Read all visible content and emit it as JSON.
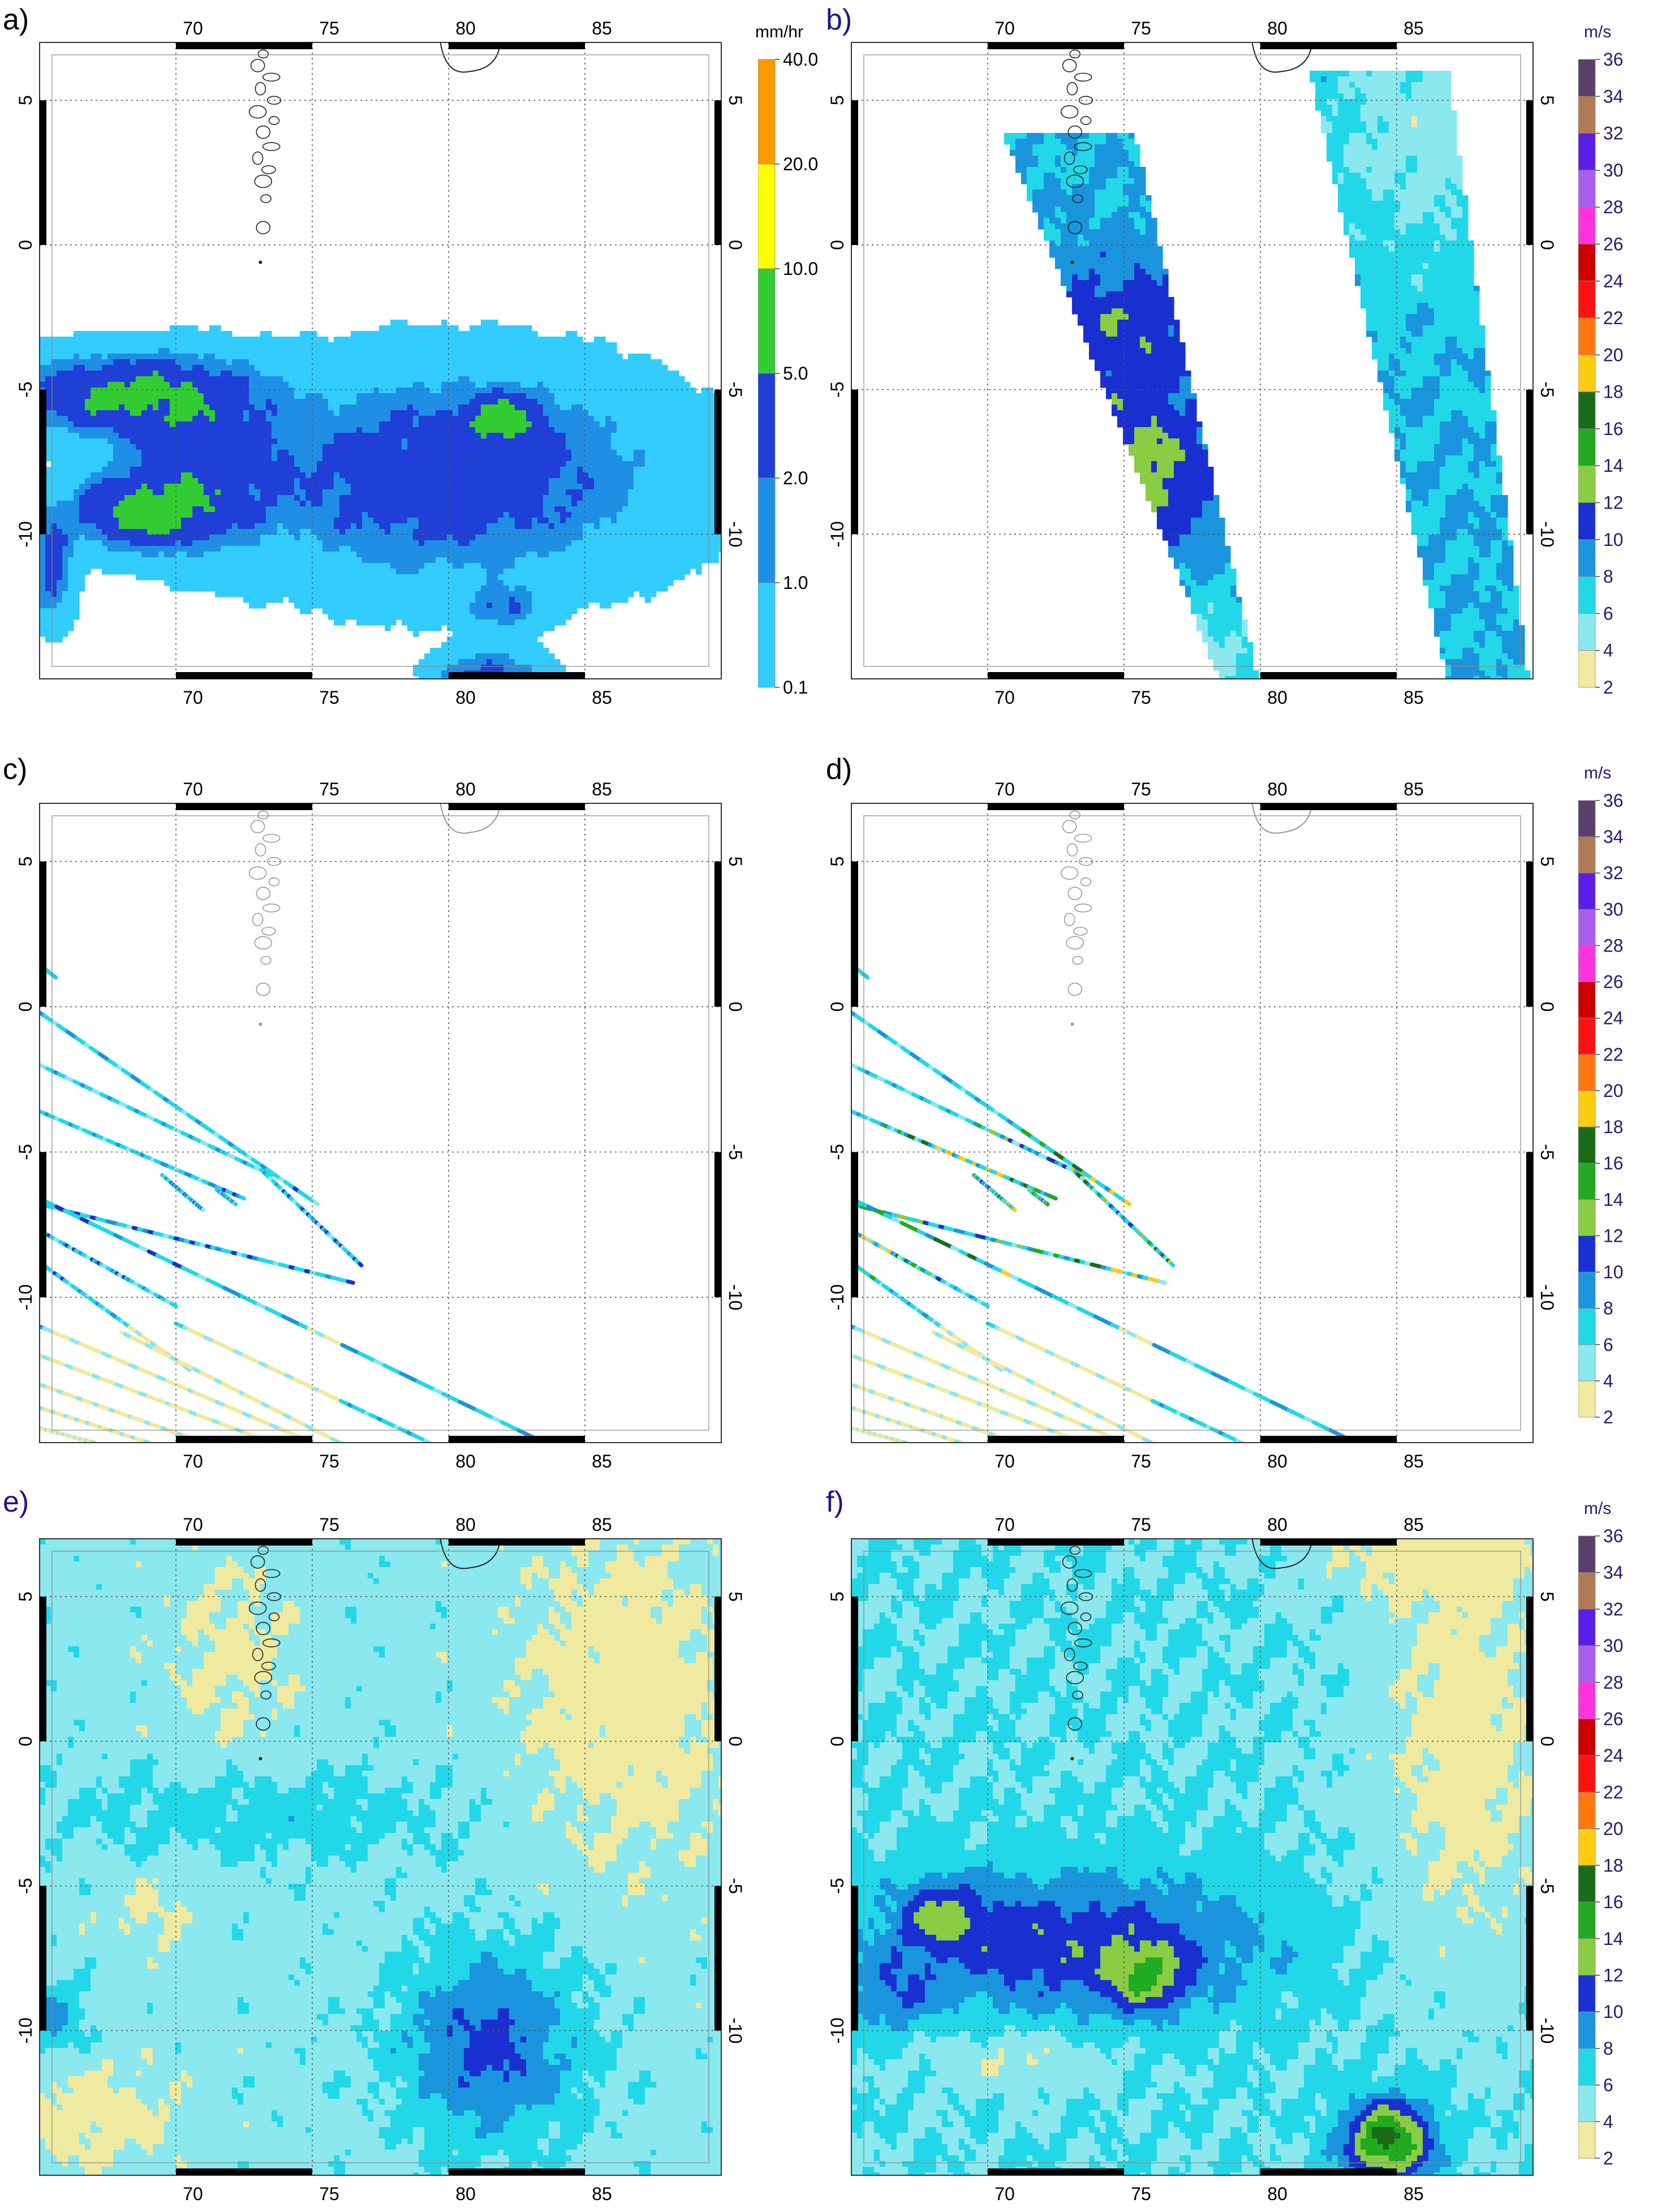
{
  "panels": [
    {
      "id": "a",
      "label": "a)",
      "label_color": "#000000",
      "type": "precip"
    },
    {
      "id": "b",
      "label": "b)",
      "label_color": "#1a1a8a",
      "type": "wind-swath"
    },
    {
      "id": "c",
      "label": "c)",
      "label_color": "#000000",
      "type": "tracks-light"
    },
    {
      "id": "d",
      "label": "d)",
      "label_color": "#000000",
      "type": "tracks-mixed"
    },
    {
      "id": "e",
      "label": "e)",
      "label_color": "#1a1a8a",
      "type": "wind-field-moderate"
    },
    {
      "id": "f",
      "label": "f)",
      "label_color": "#1a1a8a",
      "type": "wind-field-strong"
    }
  ],
  "axes": {
    "lon_ticks": [
      "70",
      "75",
      "80",
      "85"
    ],
    "lon_values": [
      70,
      75,
      80,
      85
    ],
    "lat_ticks": [
      "5",
      "0",
      "-5",
      "-10"
    ],
    "lat_values": [
      5,
      0,
      -5,
      -10
    ],
    "lon_range": [
      65,
      90
    ],
    "lat_range": [
      -15,
      7
    ],
    "grid": "dotted"
  },
  "precip_colorbar": {
    "unit": "mm/hr",
    "labels": [
      "40.0",
      "20.0",
      "10.0",
      "5.0",
      "2.0",
      "1.0",
      "0.1"
    ],
    "colors": [
      "#ff9900",
      "#ffff00",
      "#33cc33",
      "#1f3fd6",
      "#1f8fe6",
      "#33ccff"
    ]
  },
  "wind_colorbar": {
    "unit": "m/s",
    "labels": [
      "36",
      "34",
      "32",
      "30",
      "28",
      "26",
      "24",
      "22",
      "20",
      "18",
      "16",
      "14",
      "12",
      "10",
      "8",
      "6",
      "4",
      "2"
    ],
    "colors": [
      "#5a3f6a",
      "#b07a55",
      "#5a1fe6",
      "#a95ef0",
      "#ff33dd",
      "#cc0000",
      "#ff1111",
      "#ff7711",
      "#ffcc11",
      "#1a6b1a",
      "#22aa22",
      "#8acc44",
      "#1a2fd0",
      "#1a95dd",
      "#22d8e8",
      "#8ae8ee",
      "#f0eaa0"
    ]
  },
  "chart_data": [
    {
      "type": "heatmap",
      "panel": "a",
      "unit": "mm/hr",
      "xlim": [
        65,
        90
      ],
      "ylim": [
        -15,
        7
      ],
      "levels": [
        0.1,
        1.0,
        2.0,
        5.0,
        10.0,
        20.0,
        40.0
      ]
    },
    {
      "type": "heatmap",
      "panel": "b",
      "unit": "m/s",
      "xlim": [
        65,
        90
      ],
      "ylim": [
        -15,
        7
      ],
      "levels": [
        2,
        4,
        6,
        8,
        10,
        12,
        14,
        16,
        18,
        20,
        22,
        24,
        26,
        28,
        30,
        32,
        34,
        36
      ]
    },
    {
      "type": "scatter",
      "panel": "c",
      "unit": "m/s",
      "xlim": [
        65,
        90
      ],
      "ylim": [
        -15,
        7
      ]
    },
    {
      "type": "scatter",
      "panel": "d",
      "unit": "m/s",
      "xlim": [
        65,
        90
      ],
      "ylim": [
        -15,
        7
      ]
    },
    {
      "type": "heatmap",
      "panel": "e",
      "unit": "m/s",
      "xlim": [
        65,
        90
      ],
      "ylim": [
        -15,
        7
      ]
    },
    {
      "type": "heatmap",
      "panel": "f",
      "unit": "m/s",
      "xlim": [
        65,
        90
      ],
      "ylim": [
        -15,
        7
      ]
    }
  ]
}
